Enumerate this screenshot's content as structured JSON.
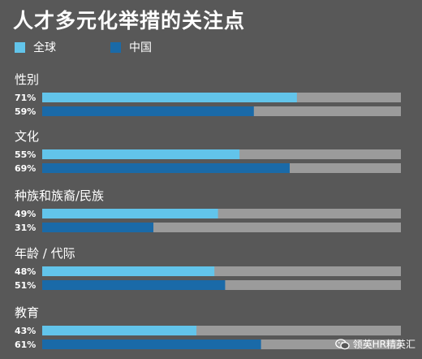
{
  "title": "人才多元化举措的关注点",
  "legend": [
    {
      "label": "全球",
      "color": "#62c4ea"
    },
    {
      "label": "中国",
      "color": "#1a6aa8"
    }
  ],
  "watermark": {
    "text": "领英HR精英汇",
    "icon": "wechat-icon"
  },
  "colors": {
    "background": "#585858",
    "track": "#9b9b9b"
  },
  "chart_data": {
    "type": "bar",
    "orientation": "horizontal",
    "xlim": [
      0,
      100
    ],
    "unit": "%",
    "categories": [
      "性别",
      "文化",
      "种族和族裔/民族",
      "年龄 / 代际",
      "教育"
    ],
    "series": [
      {
        "name": "全球",
        "color": "#62c4ea",
        "values": [
          71,
          55,
          49,
          48,
          43
        ],
        "labels": [
          "71%",
          "55%",
          "49%",
          "48%",
          "43%"
        ]
      },
      {
        "name": "中国",
        "color": "#1a6aa8",
        "values": [
          59,
          69,
          31,
          51,
          61
        ],
        "labels": [
          "59%",
          "69%",
          "31%",
          "51%",
          "61%"
        ]
      }
    ],
    "grid": false,
    "legend_position": "top-left"
  }
}
